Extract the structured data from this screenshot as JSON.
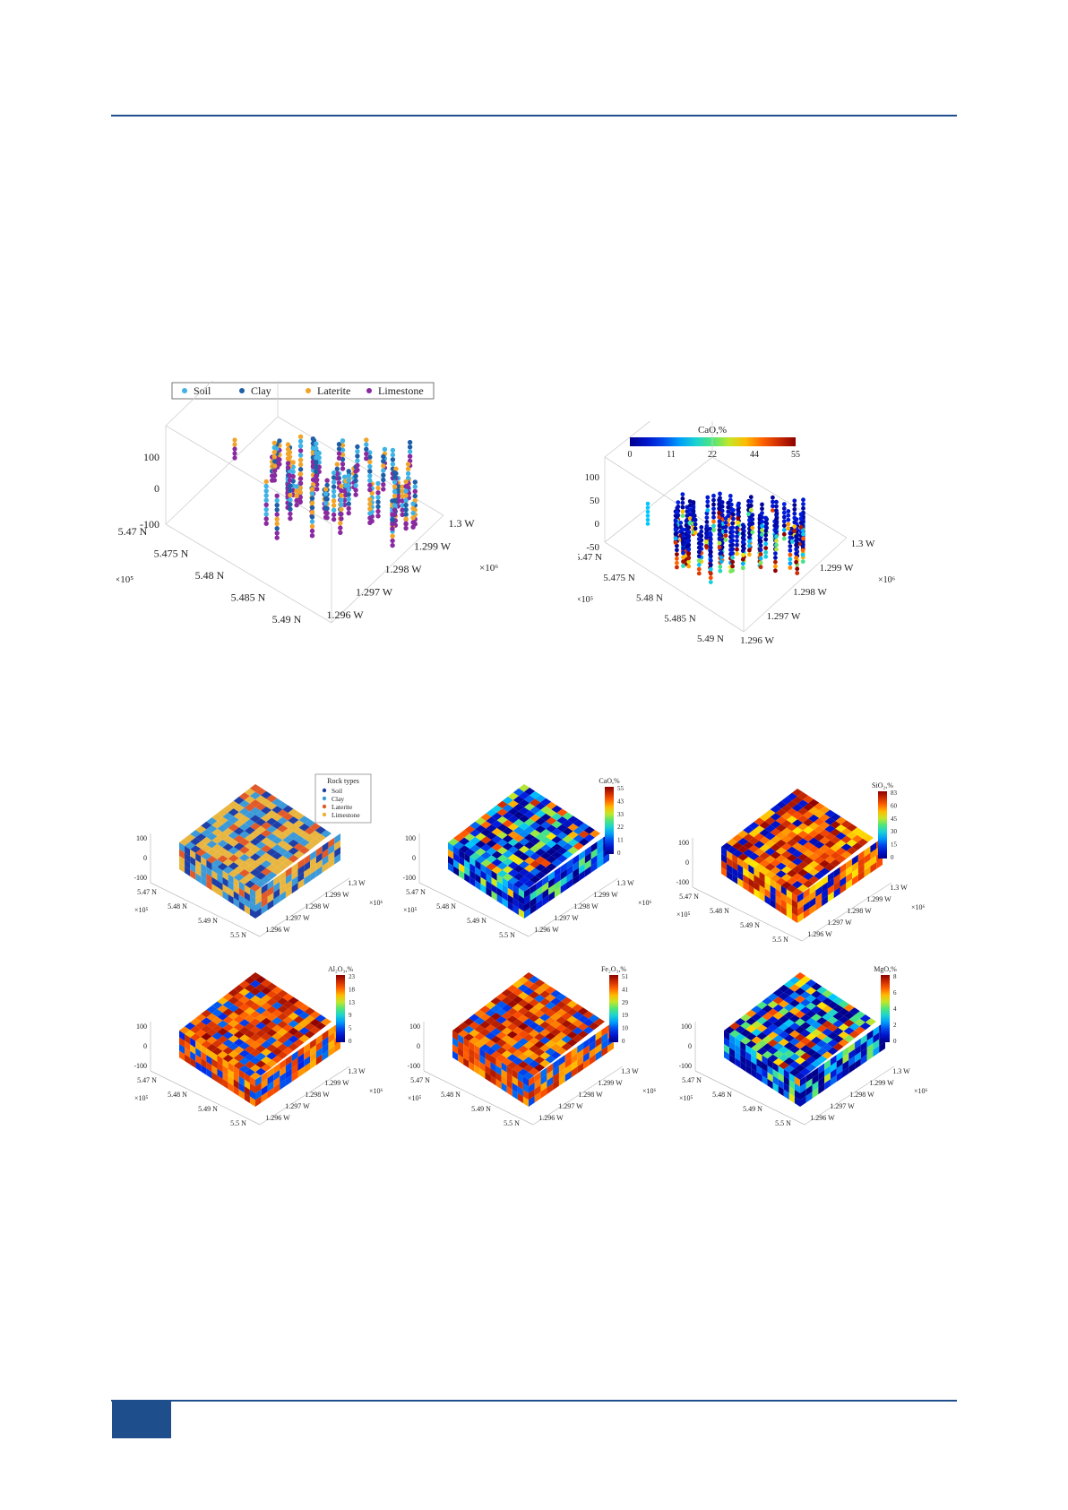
{
  "figure_a": {
    "legend": [
      {
        "label": "Soil",
        "color": "#3fb2e6"
      },
      {
        "label": "Clay",
        "color": "#1f5fa8"
      },
      {
        "label": "Laterite",
        "color": "#f0a52a"
      },
      {
        "label": "Limestone",
        "color": "#8a2aa0"
      }
    ],
    "z_ticks": [
      "100",
      "0",
      "-100"
    ],
    "north_ticks": [
      "5.47 N",
      "5.475 N",
      "5.48 N",
      "5.485 N",
      "5.49 N"
    ],
    "west_ticks": [
      "1.3 W",
      "1.299 W",
      "1.298 W",
      "1.297 W",
      "1.296 W"
    ],
    "north_exp": "×10⁵",
    "west_exp": "×10⁶"
  },
  "figure_b": {
    "colorbar_title": "CaO,%",
    "colorbar_ticks": [
      "0",
      "11",
      "22",
      "44",
      "55"
    ],
    "z_ticks": [
      "100",
      "50",
      "0",
      "-50"
    ],
    "north_ticks": [
      "5.47 N",
      "5.475 N",
      "5.48 N",
      "5.485 N",
      "5.49 N"
    ],
    "west_ticks": [
      "1.3 W",
      "1.299 W",
      "1.298 W",
      "1.297 W",
      "1.296 W"
    ],
    "north_exp": "×10⁵",
    "west_exp": "×10⁶"
  },
  "model_panels": [
    {
      "id": "rock",
      "legend_title": "Rock types",
      "legend": [
        {
          "label": "Soil",
          "color": "#1f3fa8"
        },
        {
          "label": "Clay",
          "color": "#3d9ad8"
        },
        {
          "label": "Laterite",
          "color": "#e05a2a"
        },
        {
          "label": "Limestone",
          "color": "#f0b030"
        }
      ]
    },
    {
      "id": "cao",
      "label": "CaO,%",
      "ticks": [
        "55",
        "43",
        "33",
        "22",
        "11",
        "0"
      ]
    },
    {
      "id": "sio2",
      "label": "SiO₂,%",
      "ticks": [
        "83",
        "60",
        "45",
        "30",
        "15",
        "0"
      ]
    },
    {
      "id": "al2o3",
      "label": "Al₂O₃,%",
      "ticks": [
        "23",
        "18",
        "13",
        "9",
        "5",
        "0"
      ]
    },
    {
      "id": "fe2o3",
      "label": "Fe₂O₃,%",
      "ticks": [
        "51",
        "41",
        "29",
        "19",
        "10",
        "0"
      ]
    },
    {
      "id": "mgo",
      "label": "MgO,%",
      "ticks": [
        "8",
        "6",
        "4",
        "2",
        "0"
      ]
    }
  ],
  "model_axes": {
    "z_ticks": [
      "100",
      "0",
      "-100"
    ],
    "north_ticks": [
      "5.47 N",
      "5.48 N",
      "5.49 N",
      "5.5 N"
    ],
    "west_ticks": [
      "1.3 W",
      "1.299 W",
      "1.298 W",
      "1.297 W",
      "1.296 W"
    ],
    "north_exp": "×10⁵",
    "west_exp": "×10⁶"
  },
  "colors": {
    "rule": "#1f4e8c"
  }
}
